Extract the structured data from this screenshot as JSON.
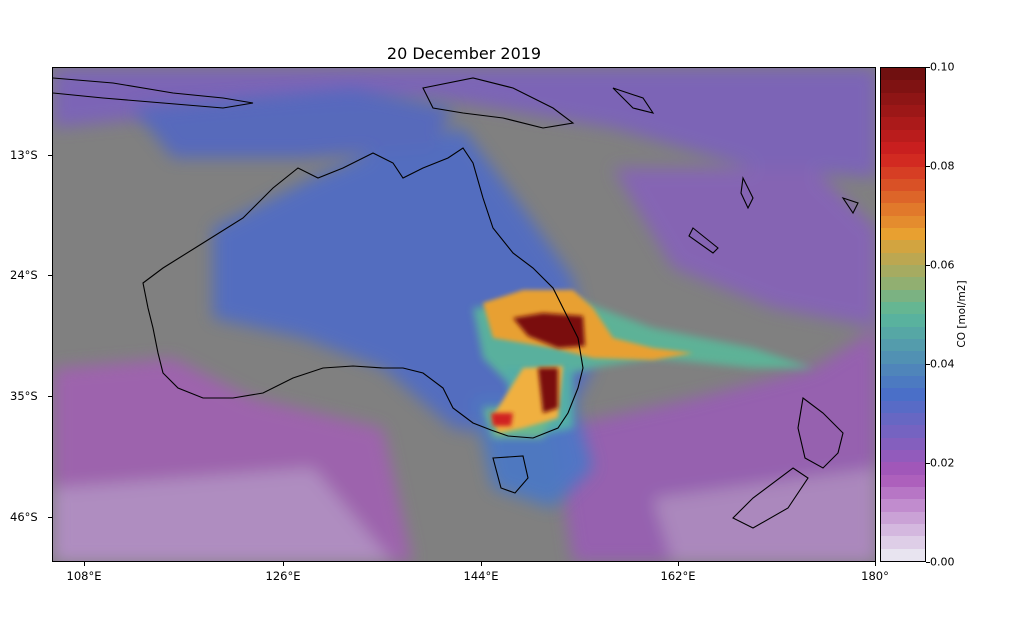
{
  "title": "20 December 2019",
  "map": {
    "lon_ticks": [
      "108°E",
      "126°E",
      "144°E",
      "162°E",
      "180°"
    ],
    "lat_ticks": [
      "13°S",
      "24°S",
      "35°S",
      "46°S"
    ]
  },
  "colorbar": {
    "label": "CO [mol/m2]",
    "ticks": [
      "0.00",
      "0.02",
      "0.04",
      "0.06",
      "0.08",
      "0.10"
    ],
    "colors": {
      "background": "#808080",
      "low": "#e8e4f0",
      "mid_low": "#a855b8",
      "mid": "#4a6fc8",
      "mid_high": "#5ab89a",
      "high": "#e8a030",
      "very_high": "#d02020",
      "max": "#701010"
    }
  }
}
